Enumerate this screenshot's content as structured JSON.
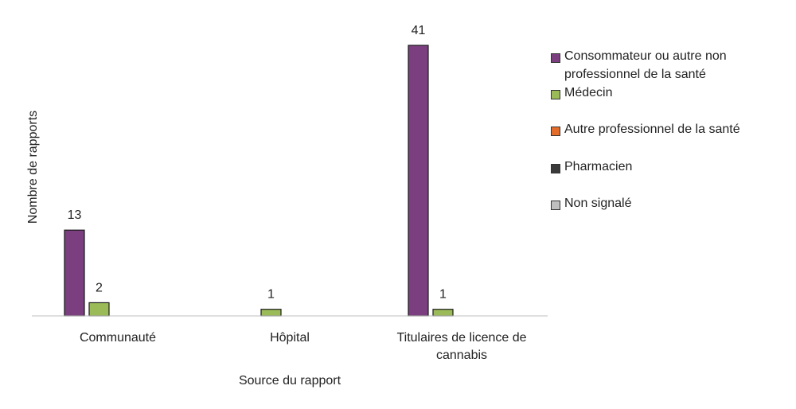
{
  "chart_data": {
    "type": "bar",
    "xlabel": "Source du rapport",
    "ylabel": "Nombre de rapports",
    "categories": [
      [
        "Communauté"
      ],
      [
        "Hôpital"
      ],
      [
        "Titulaires de licence de",
        "cannabis"
      ]
    ],
    "series": [
      {
        "name": "Consommateur ou autre non professionnel de la santé",
        "color": "#7B3F7F",
        "values": [
          13,
          0,
          41
        ]
      },
      {
        "name": "Médecin",
        "color": "#9BBB59",
        "values": [
          2,
          1,
          1
        ]
      },
      {
        "name": "Autre professionnel de la santé",
        "color": "#E46C2A",
        "values": [
          0,
          0,
          0
        ]
      },
      {
        "name": "Pharmacien",
        "color": "#3A3A3A",
        "values": [
          0,
          0,
          0
        ]
      },
      {
        "name": "Non signalé",
        "color": "#BFBFBF",
        "values": [
          0,
          0,
          0
        ]
      }
    ],
    "data_labels": [
      [
        "13",
        "",
        "41"
      ],
      [
        "2",
        "1",
        "1"
      ],
      [
        "",
        "",
        ""
      ],
      [
        "",
        "",
        ""
      ],
      [
        "",
        "",
        ""
      ]
    ],
    "ylim": [
      0,
      41
    ],
    "grid": false,
    "legend": "right"
  }
}
